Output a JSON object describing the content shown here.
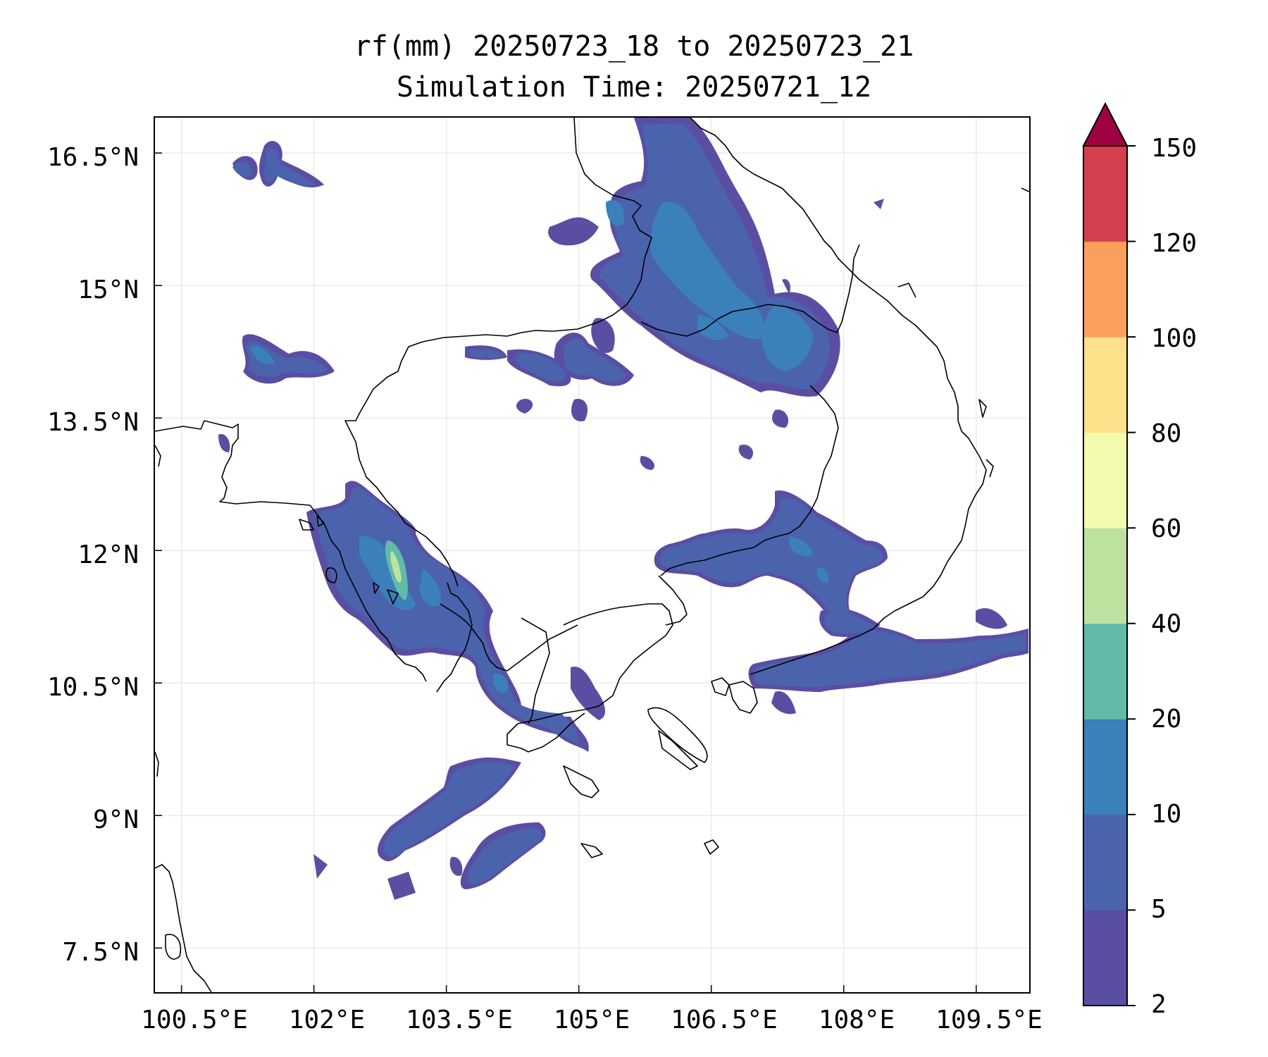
{
  "title": {
    "line1": "rf(mm) 20250723_18 to 20250723_21",
    "line2": "Simulation Time: 20250721_12"
  },
  "map": {
    "extent": {
      "lon": [
        100.2,
        110.1
      ],
      "lat": [
        7.0,
        16.9
      ]
    },
    "lat_ticks": [
      {
        "value": 16.5,
        "label": "16.5°N"
      },
      {
        "value": 15.0,
        "label": "15°N"
      },
      {
        "value": 13.5,
        "label": "13.5°N"
      },
      {
        "value": 12.0,
        "label": "12°N"
      },
      {
        "value": 10.5,
        "label": "10.5°N"
      },
      {
        "value": 9.0,
        "label": "9°N"
      },
      {
        "value": 7.5,
        "label": "7.5°N"
      }
    ],
    "lon_ticks": [
      {
        "value": 100.5,
        "label": "100.5°E"
      },
      {
        "value": 102.0,
        "label": "102°E"
      },
      {
        "value": 103.5,
        "label": "103.5°E"
      },
      {
        "value": 105.0,
        "label": "105°E"
      },
      {
        "value": 106.5,
        "label": "106.5°E"
      },
      {
        "value": 108.0,
        "label": "108°E"
      },
      {
        "value": 109.5,
        "label": "109.5°E"
      }
    ],
    "gridlines": true
  },
  "colorbar": {
    "levels": [
      2,
      5,
      10,
      20,
      40,
      60,
      80,
      100,
      120,
      150
    ],
    "labels": [
      "2",
      "5",
      "10",
      "20",
      "40",
      "60",
      "80",
      "100",
      "120",
      "150"
    ],
    "colors": [
      "#5a4ea3",
      "#4a63ac",
      "#3a80ba",
      "#61bba8",
      "#bde2a0",
      "#f4faad",
      "#fde08a",
      "#fba05c",
      "#d5404e"
    ],
    "extend_color": "#9e0142"
  }
}
